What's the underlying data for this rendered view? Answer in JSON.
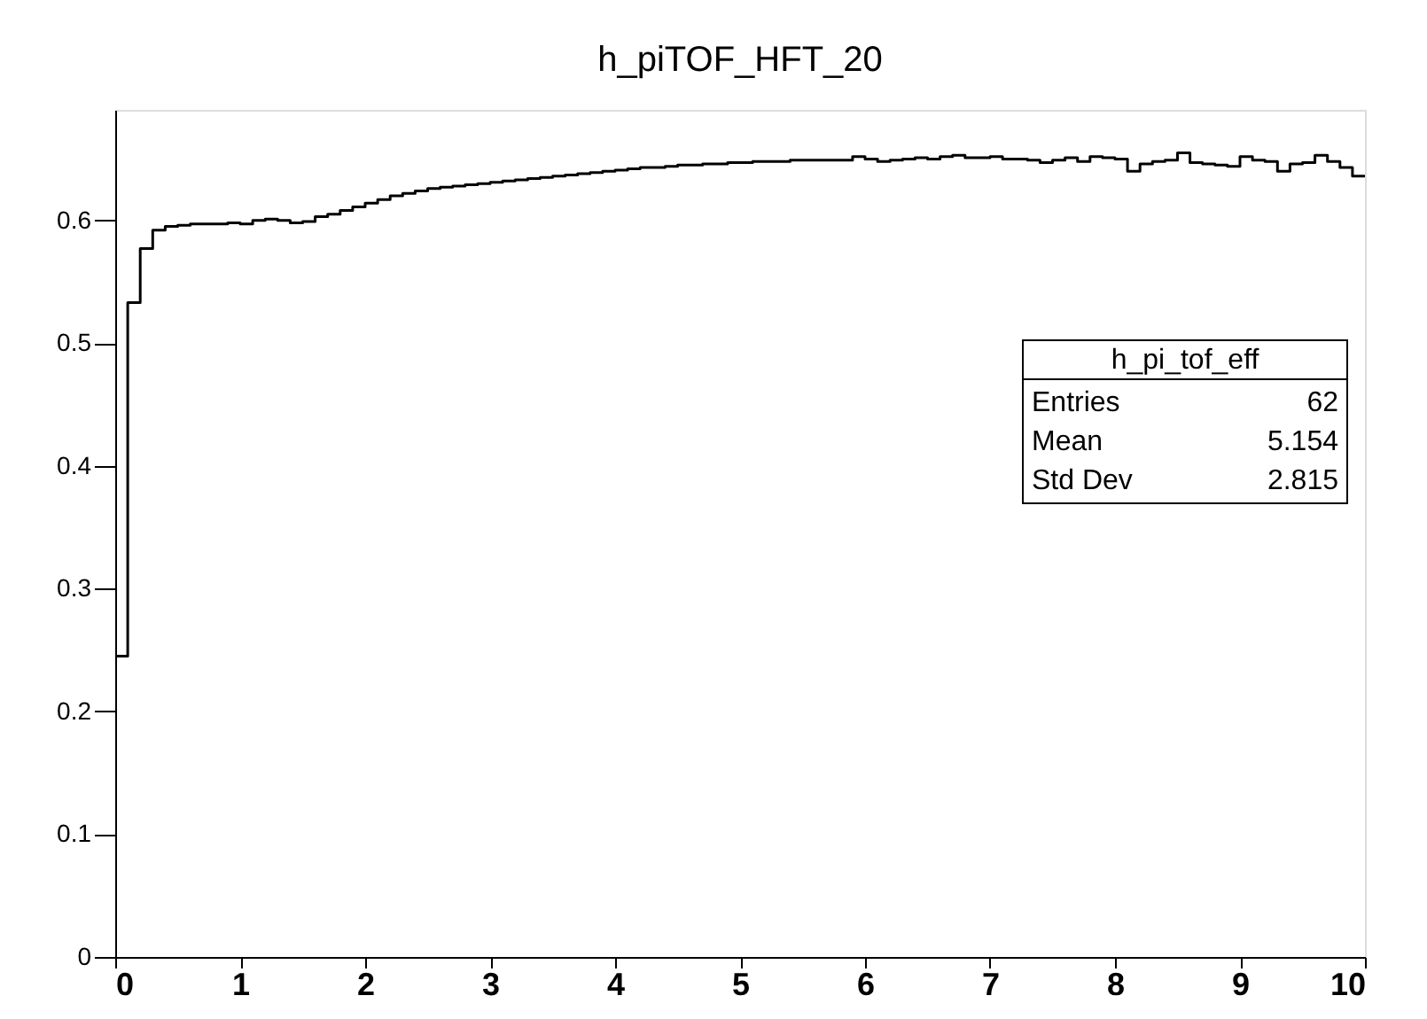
{
  "chart_data": {
    "type": "histogram",
    "title": "h_piTOF_HFT_20",
    "bins": [
      0,
      0.1,
      0.2,
      0.3,
      0.4,
      0.5,
      0.6,
      0.7,
      0.8,
      0.9,
      1,
      1.1,
      1.2,
      1.3,
      1.4,
      1.5,
      1.6,
      1.7,
      1.8,
      1.9,
      2,
      2.1,
      2.2,
      2.3,
      2.4,
      2.5,
      2.6,
      2.7,
      2.8,
      2.9,
      3,
      3.1,
      3.2,
      3.3,
      3.4,
      3.5,
      3.6,
      3.7,
      3.8,
      3.9,
      4,
      4.1,
      4.2,
      4.3,
      4.4,
      4.5,
      4.6,
      4.7,
      4.8,
      4.9,
      5,
      5.1,
      5.2,
      5.3,
      5.4,
      5.5,
      5.6,
      5.7,
      5.8,
      5.9,
      6,
      6.1,
      6.2,
      6.3,
      6.4,
      6.5,
      6.6,
      6.7,
      6.8,
      6.9,
      7,
      7.1,
      7.2,
      7.3,
      7.4,
      7.5,
      7.6,
      7.7,
      7.8,
      7.9,
      8,
      8.1,
      8.2,
      8.3,
      8.4,
      8.5,
      8.6,
      8.7,
      8.8,
      8.9,
      9,
      9.1,
      9.2,
      9.3,
      9.4,
      9.5,
      9.6,
      9.7,
      9.8,
      9.9,
      10
    ],
    "values": [
      0.245,
      0.533,
      0.577,
      0.592,
      0.595,
      0.596,
      0.597,
      0.597,
      0.597,
      0.598,
      0.597,
      0.6,
      0.601,
      0.6,
      0.598,
      0.599,
      0.603,
      0.605,
      0.608,
      0.611,
      0.614,
      0.617,
      0.62,
      0.622,
      0.624,
      0.626,
      0.627,
      0.628,
      0.629,
      0.63,
      0.631,
      0.632,
      0.633,
      0.634,
      0.635,
      0.636,
      0.637,
      0.638,
      0.639,
      0.64,
      0.641,
      0.642,
      0.643,
      0.643,
      0.644,
      0.645,
      0.645,
      0.646,
      0.646,
      0.647,
      0.647,
      0.648,
      0.648,
      0.648,
      0.649,
      0.649,
      0.649,
      0.649,
      0.649,
      0.652,
      0.65,
      0.648,
      0.649,
      0.65,
      0.651,
      0.65,
      0.652,
      0.653,
      0.651,
      0.651,
      0.652,
      0.65,
      0.65,
      0.649,
      0.647,
      0.649,
      0.651,
      0.648,
      0.652,
      0.651,
      0.65,
      0.64,
      0.646,
      0.648,
      0.649,
      0.655,
      0.647,
      0.646,
      0.645,
      0.644,
      0.652,
      0.649,
      0.648,
      0.64,
      0.646,
      0.647,
      0.653,
      0.648,
      0.643,
      0.636
    ],
    "color": "#000000",
    "xlim": [
      0,
      10
    ],
    "xticks": [
      0,
      1,
      2,
      3,
      4,
      5,
      6,
      7,
      8,
      9,
      10
    ],
    "ylim": [
      0,
      0.69
    ],
    "yticks": [
      0,
      0.1,
      0.2,
      0.3,
      0.4,
      0.5,
      0.6
    ],
    "grid": false,
    "annotations": [
      "h_pi_tof_eff",
      "Entries 62",
      "Mean 5.154",
      "Std Dev 2.815"
    ]
  }
}
